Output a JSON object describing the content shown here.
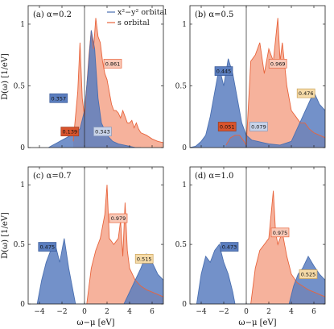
{
  "colors": {
    "x2y2": "#4a6fb0",
    "x2y2_fill": "#5b7ebf",
    "s": "#e8643c",
    "s_fill": "#f4a58b",
    "other_fill": "#f6dba8",
    "other_line": "#c9a25a",
    "overlap_dark": "#b34a2a"
  },
  "chart_data": [
    {
      "panel": "a",
      "type": "area",
      "title": "(a) α=0.2",
      "xlim": [
        -5,
        7
      ],
      "ylim": [
        0,
        1.15
      ],
      "yticks": [
        0,
        0.5,
        1
      ],
      "xticks": [
        -4,
        -2,
        0,
        2,
        4,
        6
      ],
      "ylabel": "D(ω)  [1/eV]",
      "xlabel": "",
      "legend": [
        "x²−y² orbital",
        "s orbital"
      ],
      "legend_position": "top-center",
      "labels": [
        {
          "text": "0.357",
          "series": "x2-y2",
          "x": -2.3,
          "y": 0.4
        },
        {
          "text": "0.139",
          "series": "s-dark",
          "x": -1.3,
          "y": 0.13
        },
        {
          "text": "0.343",
          "series": "x2-y2-light",
          "x": 1.6,
          "y": 0.13
        },
        {
          "text": "0.861",
          "series": "s",
          "x": 2.5,
          "y": 0.68
        }
      ],
      "series": [
        {
          "name": "x²−y² orbital",
          "x": [
            -3.2,
            -2.8,
            -2.4,
            -2.0,
            -1.6,
            -1.2,
            -0.8,
            -0.4,
            0.0,
            0.3,
            0.6,
            0.9,
            1.2,
            1.5,
            2.0,
            2.5,
            3.0,
            3.5,
            4.0,
            4.5,
            5.0
          ],
          "values": [
            0.0,
            0.02,
            0.04,
            0.06,
            0.08,
            0.1,
            0.12,
            0.15,
            0.3,
            0.6,
            0.95,
            0.8,
            0.4,
            0.2,
            0.1,
            0.05,
            0.03,
            0.02,
            0.01,
            0.0,
            0.0
          ]
        },
        {
          "name": "s orbital",
          "x": [
            -1.0,
            -0.8,
            -0.6,
            -0.4,
            -0.2,
            0.0,
            0.2,
            0.4,
            0.6,
            0.8,
            1.0,
            1.2,
            1.4,
            1.6,
            1.8,
            2.0,
            2.2,
            2.4,
            2.6,
            2.8,
            3.0,
            3.2,
            3.4,
            3.6,
            3.8,
            4.0,
            4.2,
            4.4,
            4.6,
            4.8,
            5.0,
            5.5,
            6.0,
            6.5,
            7.0
          ],
          "values": [
            0.05,
            0.25,
            0.45,
            0.85,
            0.4,
            0.25,
            0.5,
            0.75,
            0.95,
            0.8,
            1.05,
            0.9,
            0.85,
            0.7,
            0.6,
            0.55,
            0.45,
            0.35,
            0.3,
            0.3,
            0.28,
            0.24,
            0.3,
            0.25,
            0.2,
            0.2,
            0.22,
            0.16,
            0.2,
            0.15,
            0.12,
            0.1,
            0.07,
            0.05,
            0.04
          ]
        }
      ]
    },
    {
      "panel": "b",
      "type": "area",
      "title": "(b) α=0.5",
      "xlim": [
        -5,
        7
      ],
      "ylim": [
        0,
        1.15
      ],
      "yticks": [
        0,
        0.5,
        1
      ],
      "xticks": [
        -4,
        -2,
        0,
        2,
        4,
        6
      ],
      "xlabel": "",
      "labels": [
        {
          "text": "0.445",
          "series": "x2-y2",
          "x": -2.0,
          "y": 0.62
        },
        {
          "text": "0.051",
          "series": "s-dark",
          "x": -1.7,
          "y": 0.17
        },
        {
          "text": "0.079",
          "series": "x2-y2-light",
          "x": 1.1,
          "y": 0.17
        },
        {
          "text": "0.969",
          "series": "s",
          "x": 2.8,
          "y": 0.68
        },
        {
          "text": "0.476",
          "series": "other",
          "x": 5.3,
          "y": 0.44
        }
      ],
      "series": [
        {
          "name": "x²−y² orbital",
          "x": [
            -5.0,
            -4.5,
            -4.0,
            -3.6,
            -3.2,
            -2.8,
            -2.4,
            -2.0,
            -1.6,
            -1.2,
            -0.8,
            -0.4,
            0.0,
            0.5,
            1.0,
            1.5,
            2.0,
            3.0,
            4.0,
            4.5,
            5.0,
            5.5,
            6.0,
            6.5,
            7.0
          ],
          "values": [
            0.0,
            0.01,
            0.05,
            0.1,
            0.25,
            0.45,
            0.65,
            0.5,
            0.72,
            0.6,
            0.4,
            0.2,
            0.1,
            0.06,
            0.05,
            0.04,
            0.03,
            0.02,
            0.05,
            0.15,
            0.25,
            0.35,
            0.45,
            0.35,
            0.3
          ]
        },
        {
          "name": "s orbital",
          "x": [
            -1.8,
            -1.4,
            -1.0,
            -0.6,
            -0.2,
            0.0,
            0.4,
            0.8,
            1.2,
            1.6,
            2.0,
            2.4,
            2.8,
            3.0,
            3.2,
            3.6,
            4.0,
            4.4,
            4.8,
            5.2,
            5.6,
            6.0,
            6.5,
            7.0
          ],
          "values": [
            0.02,
            0.08,
            0.1,
            0.1,
            0.05,
            0.02,
            0.7,
            0.75,
            0.85,
            0.6,
            0.8,
            0.7,
            1.05,
            0.7,
            0.85,
            0.5,
            0.3,
            0.25,
            0.2,
            0.2,
            0.15,
            0.12,
            0.1,
            0.08
          ]
        }
      ]
    },
    {
      "panel": "c",
      "type": "area",
      "title": "(c) α=0.7",
      "xlim": [
        -5,
        7
      ],
      "ylim": [
        0,
        1.15
      ],
      "yticks": [
        0,
        0.5,
        1
      ],
      "xticks": [
        -4,
        -2,
        0,
        2,
        4,
        6
      ],
      "ylabel": "D(ω)  [1/eV]",
      "xlabel": "ω−μ  [eV]",
      "labels": [
        {
          "text": "0.475",
          "series": "x2-y2",
          "x": -3.3,
          "y": 0.48
        },
        {
          "text": "0.979",
          "series": "s",
          "x": 3.0,
          "y": 0.72
        },
        {
          "text": "0.515",
          "series": "other",
          "x": 5.3,
          "y": 0.38
        }
      ],
      "series": [
        {
          "name": "x²−y² orbital",
          "x": [
            -4.2,
            -3.8,
            -3.4,
            -3.0,
            -2.6,
            -2.2,
            -1.8,
            -1.4,
            -1.0,
            -0.8,
            3.5,
            4.0,
            4.5,
            5.0,
            5.5,
            6.0,
            6.5,
            7.0
          ],
          "values": [
            0.0,
            0.2,
            0.35,
            0.45,
            0.5,
            0.35,
            0.55,
            0.3,
            0.1,
            0.0,
            0.0,
            0.1,
            0.2,
            0.3,
            0.42,
            0.35,
            0.25,
            0.2
          ]
        },
        {
          "name": "s orbital",
          "x": [
            0.2,
            0.6,
            1.0,
            1.4,
            1.8,
            2.0,
            2.2,
            2.6,
            3.0,
            3.2,
            3.4,
            3.6,
            3.8,
            4.0,
            4.5,
            5.0,
            5.5,
            6.0,
            6.5,
            7.0
          ],
          "values": [
            0.0,
            0.3,
            0.45,
            0.55,
            0.75,
            1.0,
            0.55,
            0.5,
            0.55,
            0.7,
            0.4,
            0.85,
            0.45,
            0.3,
            0.2,
            0.15,
            0.12,
            0.1,
            0.08,
            0.06
          ]
        }
      ]
    },
    {
      "panel": "d",
      "type": "area",
      "title": "(d) α=1.0",
      "xlim": [
        -5,
        7
      ],
      "ylim": [
        0,
        1.15
      ],
      "yticks": [
        0,
        0.5,
        1
      ],
      "xticks": [
        -4,
        -2,
        0,
        2,
        4,
        6
      ],
      "xlabel": "ω−μ  [eV]",
      "labels": [
        {
          "text": "0.473",
          "series": "x2-y2",
          "x": -1.5,
          "y": 0.48
        },
        {
          "text": "0.975",
          "series": "s",
          "x": 3.0,
          "y": 0.6
        },
        {
          "text": "0.525",
          "series": "other",
          "x": 5.5,
          "y": 0.25
        }
      ],
      "series": [
        {
          "name": "x²−y² orbital",
          "x": [
            -4.4,
            -4.0,
            -3.6,
            -3.2,
            -2.8,
            -2.4,
            -2.0,
            -1.6,
            -1.2,
            -1.0,
            3.8,
            4.2,
            4.6,
            5.0,
            5.5,
            6.0,
            6.5,
            7.0
          ],
          "values": [
            0.0,
            0.25,
            0.4,
            0.35,
            0.45,
            0.5,
            0.35,
            0.25,
            0.1,
            0.0,
            0.0,
            0.15,
            0.25,
            0.3,
            0.4,
            0.32,
            0.25,
            0.2
          ]
        },
        {
          "name": "s orbital",
          "x": [
            0.4,
            0.8,
            1.2,
            1.6,
            2.0,
            2.4,
            2.6,
            2.8,
            3.2,
            3.6,
            4.0,
            4.5,
            5.0,
            5.5,
            6.0,
            6.5,
            7.0
          ],
          "values": [
            0.0,
            0.3,
            0.45,
            0.5,
            0.55,
            0.95,
            0.6,
            0.5,
            0.6,
            0.4,
            0.25,
            0.18,
            0.15,
            0.12,
            0.1,
            0.08,
            0.06
          ]
        }
      ]
    }
  ]
}
